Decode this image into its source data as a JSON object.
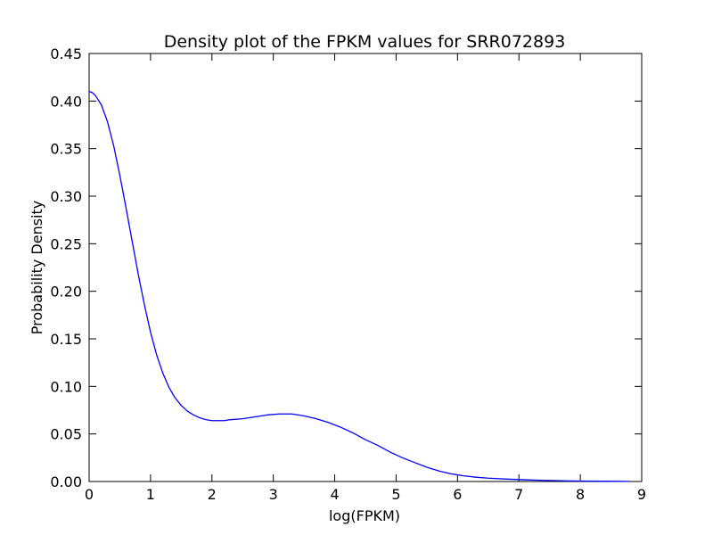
{
  "chart_data": {
    "type": "line",
    "title": "Density plot of the FPKM values for SRR072893",
    "xlabel": "log(FPKM)",
    "ylabel": "Probability Density",
    "xlim": [
      0,
      9
    ],
    "ylim": [
      0,
      0.45
    ],
    "x_ticks": [
      "0",
      "1",
      "2",
      "3",
      "4",
      "5",
      "6",
      "7",
      "8",
      "9"
    ],
    "y_ticks": [
      "0.00",
      "0.05",
      "0.10",
      "0.15",
      "0.20",
      "0.25",
      "0.30",
      "0.35",
      "0.40",
      "0.45"
    ],
    "grid": false,
    "legend": "none",
    "series": [
      {
        "color": "#0000ff",
        "x": [
          0,
          0.05,
          0.1,
          0.2,
          0.3,
          0.4,
          0.5,
          0.6,
          0.7,
          0.8,
          0.9,
          1.0,
          1.1,
          1.2,
          1.3,
          1.4,
          1.5,
          1.6,
          1.7,
          1.8,
          1.9,
          2.0,
          2.1,
          2.2,
          2.3,
          2.5,
          2.7,
          2.9,
          3.1,
          3.3,
          3.5,
          3.7,
          3.9,
          4.1,
          4.3,
          4.5,
          4.7,
          4.9,
          5.1,
          5.3,
          5.5,
          5.7,
          5.9,
          6.1,
          6.3,
          6.5,
          6.8,
          7.1,
          7.4,
          7.7,
          8.0,
          8.4,
          8.8
        ],
        "y": [
          0.41,
          0.409,
          0.406,
          0.396,
          0.378,
          0.353,
          0.322,
          0.288,
          0.253,
          0.218,
          0.186,
          0.157,
          0.133,
          0.114,
          0.099,
          0.088,
          0.08,
          0.074,
          0.07,
          0.067,
          0.065,
          0.064,
          0.064,
          0.064,
          0.065,
          0.066,
          0.068,
          0.07,
          0.071,
          0.071,
          0.069,
          0.066,
          0.062,
          0.057,
          0.051,
          0.044,
          0.038,
          0.031,
          0.025,
          0.02,
          0.015,
          0.011,
          0.008,
          0.006,
          0.0045,
          0.0035,
          0.0025,
          0.0018,
          0.0012,
          0.0008,
          0.0005,
          0.0003,
          0.0001
        ]
      }
    ]
  }
}
